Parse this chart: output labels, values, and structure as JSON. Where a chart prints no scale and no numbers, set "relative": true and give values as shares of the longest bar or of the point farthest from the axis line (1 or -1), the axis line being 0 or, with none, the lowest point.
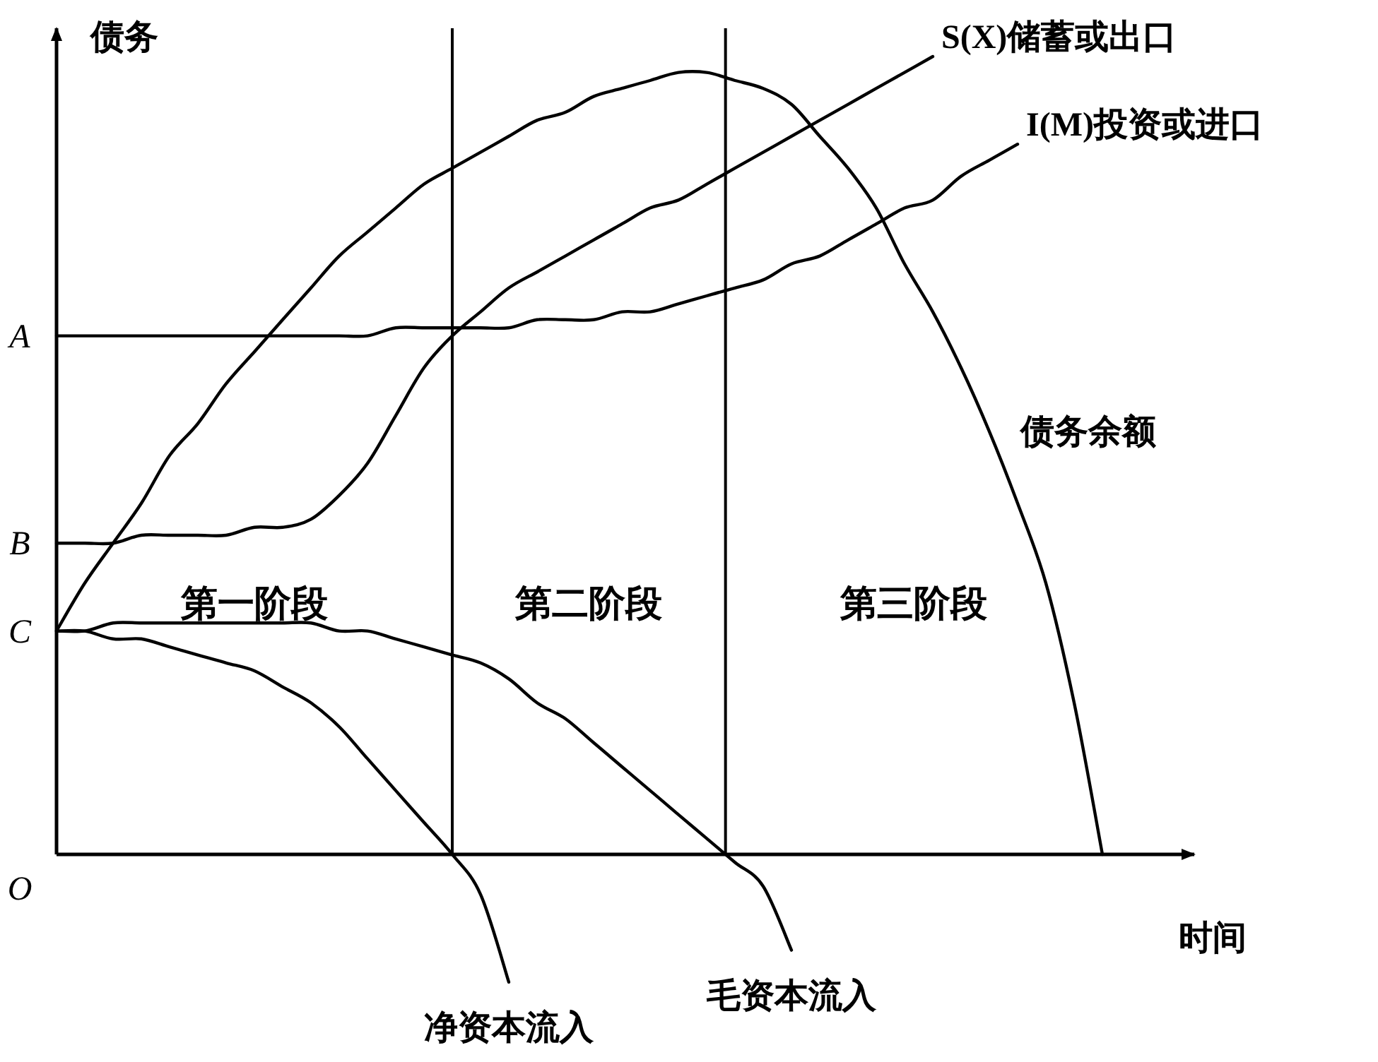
{
  "chart_data": {
    "type": "line",
    "xlabel": "时间",
    "ylabel": "债务",
    "relative": true,
    "categories": [
      null,
      null,
      null,
      null,
      null,
      null,
      null,
      null,
      null,
      null,
      null,
      null,
      null,
      null,
      null,
      null,
      null,
      null,
      null,
      null,
      null,
      null,
      null,
      null,
      null,
      null,
      null,
      null,
      null,
      null,
      null,
      null,
      null,
      null,
      null,
      null,
      null,
      null
    ],
    "series": [
      {
        "name": "S(X)储蓄或出口",
        "color": "#000000",
        "values": [
          0.39,
          0.39,
          0.39,
          0.4,
          0.4,
          0.4,
          0.4,
          0.41,
          0.41,
          0.42,
          0.45,
          0.49,
          0.55,
          0.61,
          0.65,
          0.68,
          0.71,
          0.73,
          0.75,
          0.77,
          0.79,
          0.81,
          0.82,
          0.84,
          0.86,
          0.88,
          0.9,
          0.92,
          0.94,
          0.96,
          0.98,
          1,
          null,
          null,
          null,
          null,
          null,
          null
        ]
      },
      {
        "name": "I(M)投资或进口",
        "color": "#000000",
        "values": [
          0.65,
          0.65,
          0.65,
          0.65,
          0.65,
          0.65,
          0.65,
          0.65,
          0.65,
          0.65,
          0.65,
          0.65,
          0.66,
          0.66,
          0.66,
          0.66,
          0.66,
          0.67,
          0.67,
          0.67,
          0.68,
          0.68,
          0.69,
          0.7,
          0.71,
          0.72,
          0.74,
          0.75,
          0.77,
          0.79,
          0.81,
          0.82,
          0.85,
          0.87,
          0.89,
          null,
          null,
          null
        ]
      },
      {
        "name": "债务余额",
        "color": "#000000",
        "values": [
          0.28,
          0.34,
          0.39,
          0.44,
          0.5,
          0.54,
          0.59,
          0.63,
          0.67,
          0.71,
          0.75,
          0.78,
          0.81,
          0.84,
          0.86,
          0.88,
          0.9,
          0.92,
          0.93,
          0.95,
          0.96,
          0.97,
          0.98,
          0.98,
          0.97,
          0.96,
          0.94,
          0.9,
          0.86,
          0.81,
          0.74,
          0.68,
          0.61,
          0.53,
          0.44,
          0.34,
          0.19,
          0
        ]
      },
      {
        "name": "净资本流入",
        "color": "#000000",
        "values": [
          0.28,
          0.28,
          0.27,
          0.27,
          0.26,
          0.25,
          0.24,
          0.23,
          0.21,
          0.19,
          0.16,
          0.12,
          0.08,
          0.04,
          0,
          -0.05,
          -0.16,
          null,
          null,
          null,
          null,
          null,
          null,
          null,
          null,
          null,
          null,
          null,
          null,
          null,
          null,
          null,
          null,
          null,
          null,
          null,
          null,
          null
        ]
      },
      {
        "name": "毛资本流入",
        "color": "#000000",
        "values": [
          0.28,
          0.28,
          0.29,
          0.29,
          0.29,
          0.29,
          0.29,
          0.29,
          0.29,
          0.29,
          0.28,
          0.28,
          0.27,
          0.26,
          0.25,
          0.24,
          0.22,
          0.19,
          0.17,
          0.14,
          0.11,
          0.08,
          0.05,
          0.02,
          -0.01,
          -0.04,
          -0.12,
          null,
          null,
          null,
          null,
          null,
          null,
          null,
          null,
          null,
          null,
          null
        ]
      }
    ],
    "annotations": [
      "第一阶段",
      "第二阶段",
      "第三阶段",
      "A",
      "B",
      "C",
      "O"
    ]
  }
}
